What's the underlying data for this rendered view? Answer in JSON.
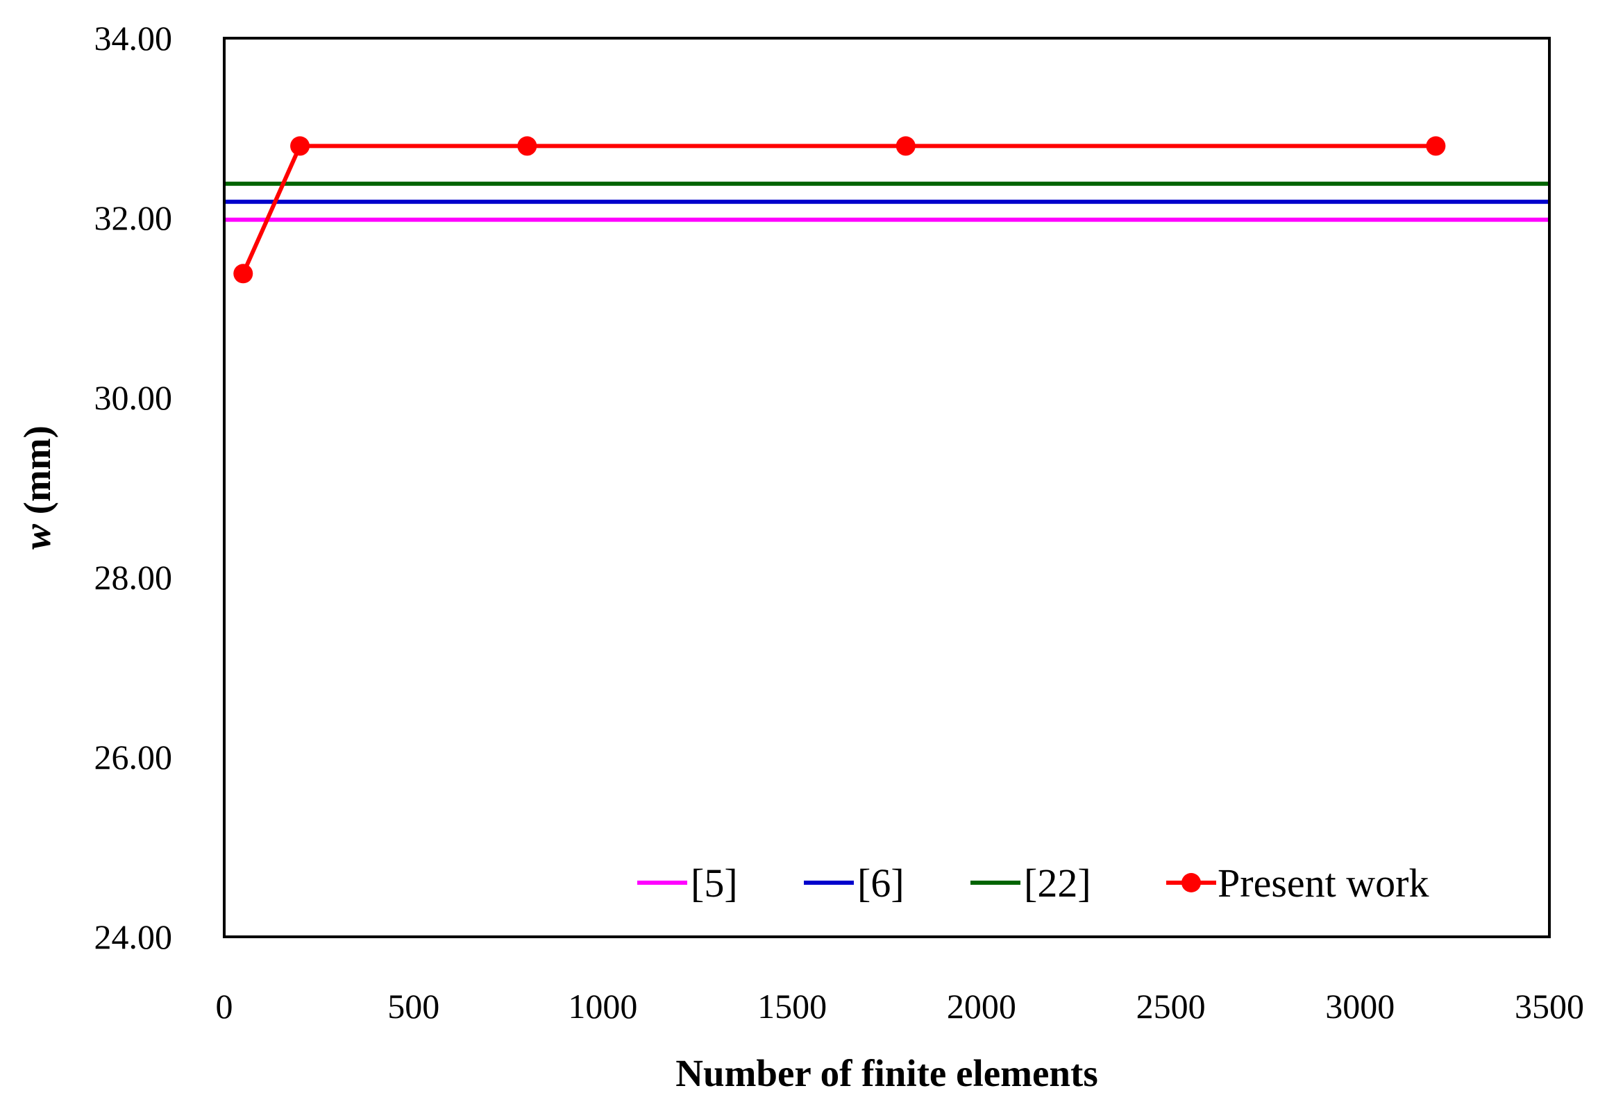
{
  "chart_data": {
    "type": "line",
    "title": "",
    "xlabel": "Number of finite elements",
    "ylabel_var": "w",
    "ylabel_unit": " (mm)",
    "xlim": [
      0,
      3500
    ],
    "ylim": [
      24,
      34
    ],
    "xticks": [
      0,
      500,
      1000,
      1500,
      2000,
      2500,
      3000,
      3500
    ],
    "xtick_labels": [
      "0",
      "500",
      "1000",
      "1500",
      "2000",
      "2500",
      "3000",
      "3500"
    ],
    "yticks": [
      24,
      26,
      28,
      30,
      32,
      34
    ],
    "ytick_labels": [
      "24.00",
      "26.00",
      "28.00",
      "30.00",
      "32.00",
      "34.00"
    ],
    "grid": false,
    "legend_position": "bottom-right",
    "series": [
      {
        "name": "[5]",
        "color": "#ff00ff",
        "markers": false,
        "x": [
          0,
          3500
        ],
        "y": [
          31.98,
          31.98
        ]
      },
      {
        "name": "[6]",
        "color": "#0000cc",
        "markers": false,
        "x": [
          0,
          3500
        ],
        "y": [
          32.18,
          32.18
        ]
      },
      {
        "name": "[22]",
        "color": "#006400",
        "markers": false,
        "x": [
          0,
          3500
        ],
        "y": [
          32.38,
          32.38
        ]
      },
      {
        "name": "Present work",
        "color": "#ff0000",
        "markers": true,
        "x": [
          50,
          200,
          800,
          1800,
          3200
        ],
        "y": [
          31.38,
          32.8,
          32.8,
          32.8,
          32.8
        ]
      }
    ]
  }
}
